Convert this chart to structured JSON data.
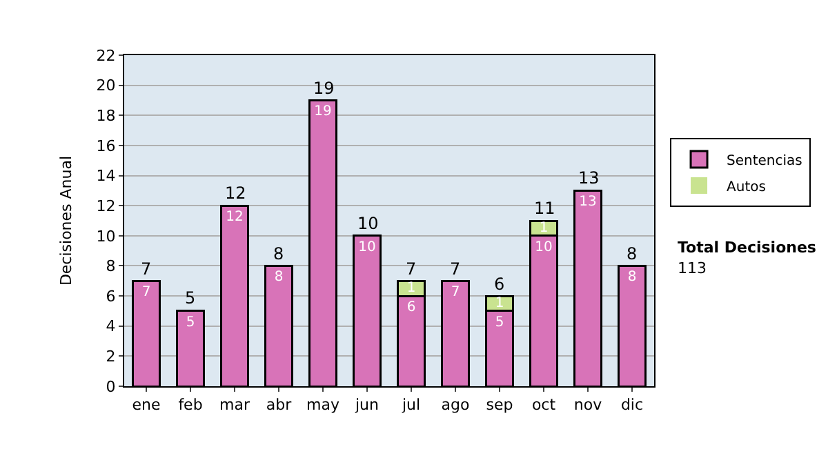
{
  "chart_data": {
    "type": "bar",
    "stacked": true,
    "ylabel": "Decisiones Anual",
    "categories": [
      "ene",
      "feb",
      "mar",
      "abr",
      "may",
      "jun",
      "jul",
      "ago",
      "sep",
      "oct",
      "nov",
      "dic"
    ],
    "series": [
      {
        "name": "Sentencias",
        "color": "#d873b8",
        "values": [
          7,
          5,
          12,
          8,
          19,
          10,
          6,
          7,
          5,
          10,
          13,
          8
        ],
        "value_labels": [
          "7",
          "5",
          "12",
          "8",
          "19",
          "10",
          "6",
          "7",
          "5",
          "10",
          "13",
          "8"
        ]
      },
      {
        "name": "Autos",
        "color": "#c9e390",
        "values": [
          0,
          0,
          0,
          0,
          0,
          0,
          1,
          0,
          1,
          1,
          0,
          0
        ],
        "value_labels": [
          null,
          null,
          null,
          null,
          null,
          null,
          "1",
          null,
          "1",
          "1",
          null,
          null
        ]
      }
    ],
    "totals": [
      "7",
      "5",
      "12",
      "8",
      "19",
      "10",
      "7",
      "7",
      "6",
      "11",
      "13",
      "8"
    ],
    "ylim": [
      0,
      22
    ],
    "yticks": [
      0,
      2,
      4,
      6,
      8,
      10,
      12,
      14,
      16,
      18,
      20,
      22
    ],
    "grid": "y",
    "legend": "right",
    "annotations": [
      "Total Decisiones",
      "113"
    ]
  }
}
